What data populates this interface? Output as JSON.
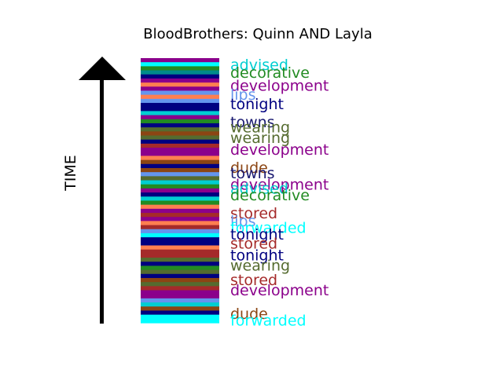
{
  "chart_data": {
    "type": "bar",
    "title": "BloodBrothers: Quinn AND Layla",
    "ylabel": "TIME",
    "x": [],
    "colors": {
      "advised": "#00ced1",
      "decorative": "#228b22",
      "development": "#8b008b",
      "lips": "#6495ed",
      "tonight": "#000080",
      "towns": "#191970",
      "wearing": "#556b2f",
      "dude": "#8b4513",
      "stored": "#a52a2a",
      "forwarded": "#00ffff"
    },
    "stripes": [
      "#8b008b",
      "#00ffff",
      "#228b22",
      "#008b8b",
      "#000080",
      "#8b008b",
      "#ff7f50",
      "#8b008b",
      "#6495ed",
      "#ff7f50",
      "#6495ed",
      "#000080",
      "#000080",
      "#00ced1",
      "#8b008b",
      "#228b22",
      "#000080",
      "#556b2f",
      "#8b4513",
      "#556b2f",
      "#000080",
      "#a52a2a",
      "#8b008b",
      "#8b008b",
      "#ff7f50",
      "#8b4513",
      "#000080",
      "#8b4513",
      "#6495ed",
      "#556b2f",
      "#00ced1",
      "#228b22",
      "#8b008b",
      "#000080",
      "#00ced1",
      "#228b22",
      "#ff7f50",
      "#8b008b",
      "#a52a2a",
      "#8b008b",
      "#ff7f50",
      "#a52a2a",
      "#6495ed",
      "#00ffff",
      "#000080",
      "#000080",
      "#ff7f50",
      "#a52a2a",
      "#a52a2a",
      "#556b2f",
      "#000080",
      "#228b22",
      "#556b2f",
      "#000080",
      "#8b4513",
      "#556b2f",
      "#a52a2a",
      "#8b008b",
      "#8b008b",
      "#6495ed",
      "#00ced1",
      "#8b4513",
      "#000080",
      "#00ffff",
      "#00ffff"
    ],
    "labels": [
      {
        "text": "advised",
        "y": 0.985
      },
      {
        "text": "decorative",
        "y": 0.955
      },
      {
        "text": "development",
        "y": 0.905
      },
      {
        "text": "lips",
        "y": 0.87
      },
      {
        "text": "tonight",
        "y": 0.835
      },
      {
        "text": "towns",
        "y": 0.765
      },
      {
        "text": "wearing",
        "y": 0.745
      },
      {
        "text": "wearing",
        "y": 0.705
      },
      {
        "text": "development",
        "y": 0.66
      },
      {
        "text": "dude",
        "y": 0.59
      },
      {
        "text": "towns",
        "y": 0.57
      },
      {
        "text": "development",
        "y": 0.525
      },
      {
        "text": "advised",
        "y": 0.51
      },
      {
        "text": "decorative",
        "y": 0.485
      },
      {
        "text": "stored",
        "y": 0.415
      },
      {
        "text": "lips",
        "y": 0.385
      },
      {
        "text": "forwarded",
        "y": 0.36
      },
      {
        "text": "tonight",
        "y": 0.335
      },
      {
        "text": "stored",
        "y": 0.3
      },
      {
        "text": "tonight",
        "y": 0.255
      },
      {
        "text": "wearing",
        "y": 0.215
      },
      {
        "text": "stored",
        "y": 0.16
      },
      {
        "text": "development",
        "y": 0.12
      },
      {
        "text": "dude",
        "y": 0.03
      },
      {
        "text": "forwarded",
        "y": 0.005
      }
    ]
  }
}
